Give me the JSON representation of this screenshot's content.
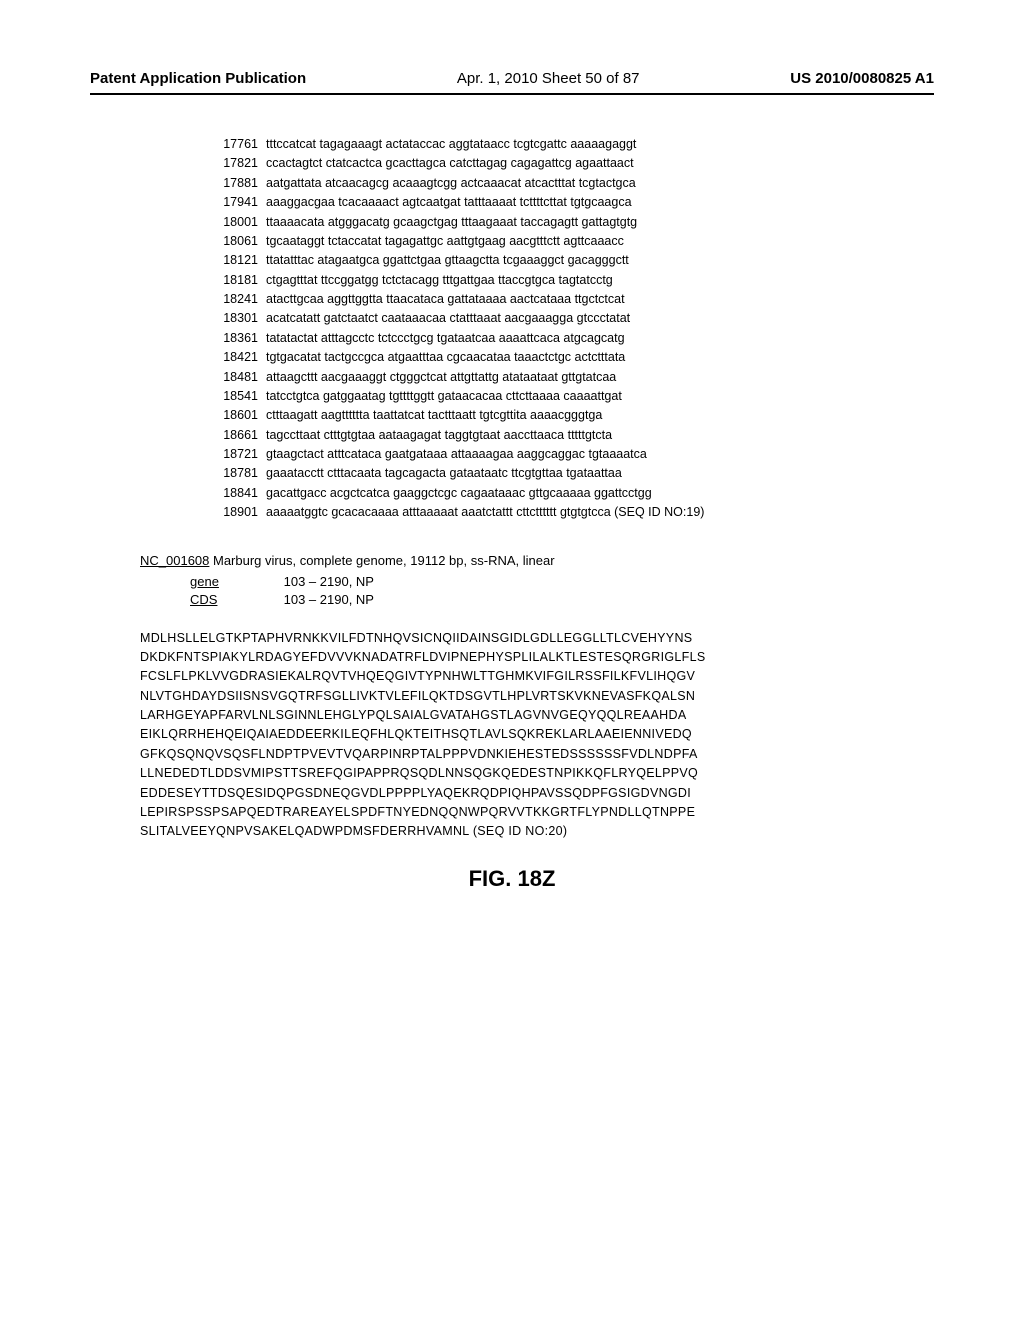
{
  "header": {
    "left": "Patent Application Publication",
    "center": "Apr. 1, 2010  Sheet 50 of 87",
    "right": "US 2010/0080825 A1"
  },
  "nucleotide": {
    "lines": [
      {
        "pos": "17761",
        "seq": "tttccatcat tagagaaagt actataccac aggtataacc tcgtcgattc aaaaagaggt"
      },
      {
        "pos": "17821",
        "seq": "ccactagtct ctatcactca gcacttagca catcttagag cagagattcg agaattaact"
      },
      {
        "pos": "17881",
        "seq": "aatgattata atcaacagcg acaaagtcgg actcaaacat atcactttat tcgtactgca"
      },
      {
        "pos": "17941",
        "seq": "aaaggacgaa tcacaaaact agtcaatgat tatttaaaat tcttttcttat tgtgcaagca"
      },
      {
        "pos": "18001",
        "seq": "ttaaaacata atgggacatg gcaagctgag tttaagaaat taccagagtt gattagtgtg"
      },
      {
        "pos": "18061",
        "seq": "tgcaataggt tctaccatat tagagattgc aattgtgaag aacgtttctt agttcaaacc"
      },
      {
        "pos": "18121",
        "seq": "ttatatttac atagaatgca ggattctgaa gttaagctta tcgaaaggct gacagggctt"
      },
      {
        "pos": "18181",
        "seq": "ctgagtttat ttccggatgg tctctacagg tttgattgaa ttaccgtgca tagtatcctg"
      },
      {
        "pos": "18241",
        "seq": "atacttgcaa aggttggtta ttaacataca gattataaaa aactcataaa ttgctctcat"
      },
      {
        "pos": "18301",
        "seq": "acatcatatt gatctaatct caataaacaa ctatttaaat aacgaaagga gtccctatat"
      },
      {
        "pos": "18361",
        "seq": "tatatactat atttagcctc tctccctgcg tgataatcaa aaaattcaca atgcagcatg"
      },
      {
        "pos": "18421",
        "seq": "tgtgacatat tactgccgca atgaatttaa cgcaacataa taaactctgc actctttata"
      },
      {
        "pos": "18481",
        "seq": "attaagcttt aacgaaaggt ctgggctcat attgttattg atataataat gttgtatcaa"
      },
      {
        "pos": "18541",
        "seq": "tatcctgtca gatggaatag tgttttggtt gataacacaa cttcttaaaa caaaattgat"
      },
      {
        "pos": "18601",
        "seq": "ctttaagatt aagtttttta taattatcat tactttaatt tgtcgttita aaaacgggtga"
      },
      {
        "pos": "18661",
        "seq": "tagccttaat ctttgtgtaa aataagagat taggtgtaat aaccttaaca tttttgtcta"
      },
      {
        "pos": "18721",
        "seq": "gtaagctact atttcataca gaatgataaa attaaaagaa aaggcaggac tgtaaaatca"
      },
      {
        "pos": "18781",
        "seq": "gaaatacctt ctttacaata tagcagacta gataataatc ttcgtgttaa tgataattaa"
      },
      {
        "pos": "18841",
        "seq": "gacattgacc acgctcatca gaaggctcgc cagaataaac gttgcaaaaa ggattcctgg"
      },
      {
        "pos": "18901",
        "seq": "aaaaatggtc gcacacaaaa atttaaaaat aaatctattt cttctttttt gtgtgtcca (SEQ ID NO:19)"
      }
    ]
  },
  "genome": {
    "accession": "NC_001608",
    "desc": " Marburg virus, complete genome, 19112 bp, ss-RNA, linear"
  },
  "gene": {
    "label": "gene",
    "range": "103 – 2190, NP"
  },
  "cds": {
    "label": "CDS",
    "range": "103 – 2190, NP"
  },
  "protein": [
    "MDLHSLLELGTKPTAPHVRNKKVILFDTNHQVSICNQIIDAINSGIDLGDLLEGGLLTLCVEHYYNS",
    "DKDKFNTSPIAKYLRDAGYEFDVVVKNADATRFLDVIPNEPHYSPLILALKTLESTESQRGRIGLFLS",
    "FCSLFLPKLVVGDRASIEKALRQVTVHQEQGIVTYPNHWLTTGHMKVIFGILRSSFILKFVLIHQGV",
    "NLVTGHDAYDSIISNSVGQTRFSGLLIVKTVLEFILQKTDSGVTLHPLVRTSKVKNEVASFKQALSN",
    "LARHGEYAPFARVLNLSGINNLEHGLYPQLSAIALGVATAHGSTLAGVNVGEQYQQLREAAHDA",
    "EIKLQRRHEHQEIQAIAEDDEERKILEQFHLQKTEITHSQTLAVLSQKREKLARLAAEIENNIVEDQ",
    "GFKQSQNQVSQSFLNDPTPVEVTVQARPINRPTALPPPVDNKIEHESTEDSSSSSSFVDLNDPFA",
    "LLNEDEDTLDDSVMIPSTTSREFQGIPAPPRQSQDLNNSQGKQEDESTNPIKKQFLRYQELPPVQ",
    "EDDESEYTTDSQESIDQPGSDNEQGVDLPPPPLYAQEKRQDPIQHPAVSSQDPFGSIGDVNGDI",
    "LEPIRSPSSPSAPQEDTRAREAYELSPDFTNYEDNQQNWPQRVVTKKGRTFLYPNDLLQTNPPE",
    "SLITALVEEYQNPVSAKELQADWPDMSFDERRHVAMNL (SEQ ID NO:20)"
  ],
  "figure": "FIG.  18Z"
}
